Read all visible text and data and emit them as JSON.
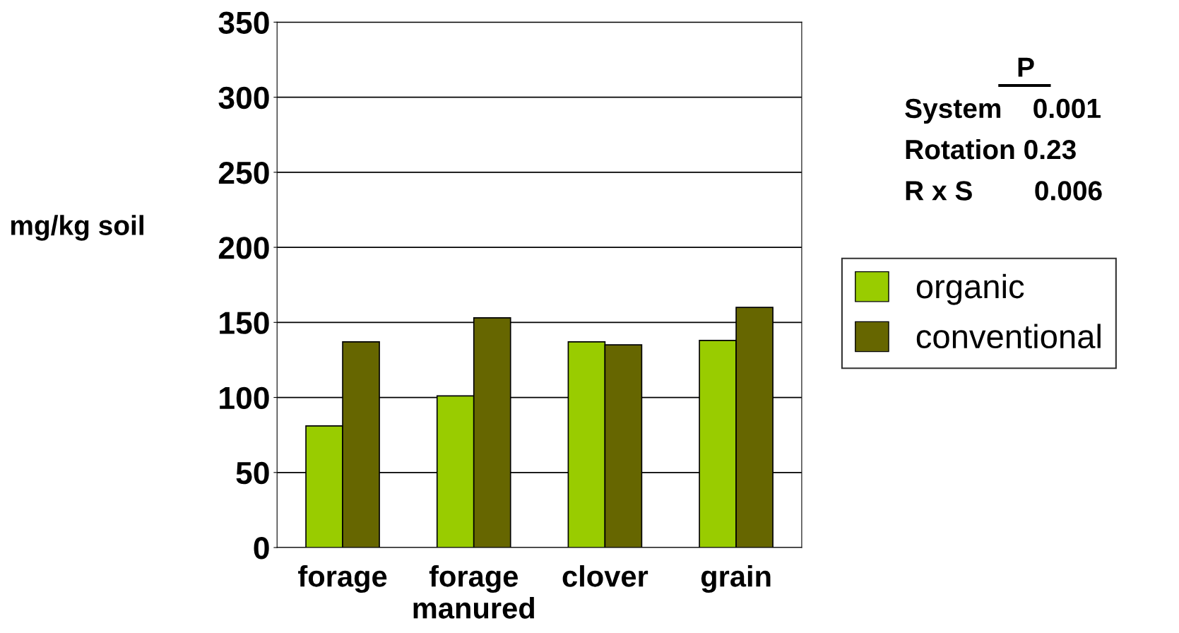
{
  "chart_data": {
    "type": "bar",
    "ylabel": "mg/kg soil",
    "categories": [
      "forage",
      "forage\nmanured",
      "clover",
      "grain"
    ],
    "series": [
      {
        "name": "organic",
        "color": "#99cc00",
        "values": [
          81,
          101,
          137,
          138
        ]
      },
      {
        "name": "conventional",
        "color": "#666600",
        "values": [
          137,
          153,
          135,
          160
        ]
      }
    ],
    "ylim": [
      0,
      350
    ],
    "yticks": [
      0,
      50,
      100,
      150,
      200,
      250,
      300,
      350
    ],
    "grid": "y",
    "legend": "right",
    "annotations": [
      "P",
      "System    0.001",
      "Rotation 0.23",
      "R x S        0.006"
    ]
  }
}
